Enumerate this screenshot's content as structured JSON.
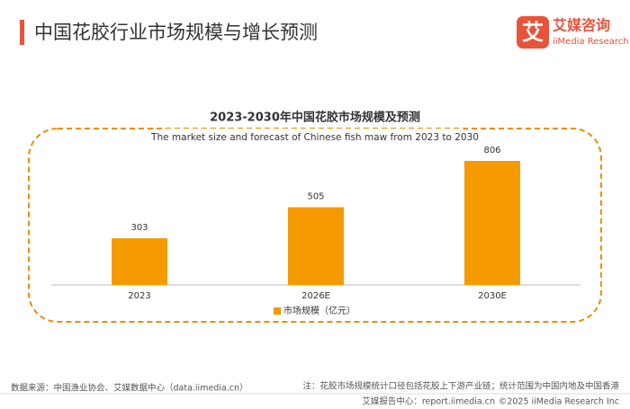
{
  "header": {
    "title": "中国花胶行业市场规模与增长预测"
  },
  "logo": {
    "mark": "艾",
    "name": "艾媒咨询",
    "en": "iiMedia Research"
  },
  "chart_data": {
    "type": "bar",
    "title": "2023-2030年中国花胶市场规模及预测",
    "subtitle": "The market size and forecast of Chinese fish maw from 2023 to 2030",
    "categories": [
      "2023",
      "2026E",
      "2030E"
    ],
    "series": [
      {
        "name": "市场规模（亿元）",
        "color": "#f59a00",
        "values": [
          303,
          505,
          806
        ]
      }
    ]
  },
  "footer": {
    "source": "数据来源：中国渔业协会、艾媒数据中心（data.iimedia.cn）",
    "note": "注：花胶市场规模统计口径包括花胶上下游产业链；统计范围为中国内地及中国香港",
    "site": "艾媒报告中心：report.iimedia.cn",
    "copyright": "©2025  iiMedia Research  Inc"
  }
}
